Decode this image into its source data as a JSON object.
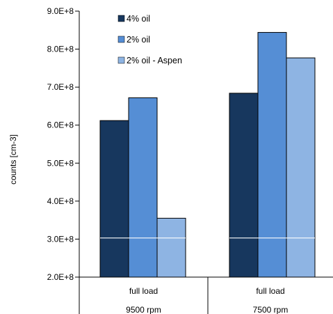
{
  "chart_data": {
    "type": "bar",
    "title": "",
    "xlabel": "",
    "ylabel": "counts [cm-3]",
    "ylim": [
      200000000,
      900000000
    ],
    "yticks": [
      200000000,
      300000000,
      400000000,
      500000000,
      600000000,
      700000000,
      800000000,
      900000000
    ],
    "ytick_labels": [
      "2.0E+8",
      "3.0E+8",
      "4.0E+8",
      "5.0E+8",
      "6.0E+8",
      "7.0E+8",
      "8.0E+8",
      "9.0E+8"
    ],
    "categories": [
      "full load",
      "full load"
    ],
    "category_sublabels": [
      "9500 rpm",
      "7500 rpm"
    ],
    "series": [
      {
        "name": "4% oil",
        "color": "#17375e",
        "values": [
          612000000,
          684000000
        ]
      },
      {
        "name": "2% oil",
        "color": "#558ed5",
        "values": [
          672000000,
          844000000
        ]
      },
      {
        "name": "2% oil - Aspen",
        "color": "#8eb4e3",
        "values": [
          355000000,
          777000000
        ]
      }
    ],
    "reference_line": {
      "value": 303000000,
      "color": "#ffffff"
    },
    "grid": false,
    "legend_position": "top-left"
  }
}
